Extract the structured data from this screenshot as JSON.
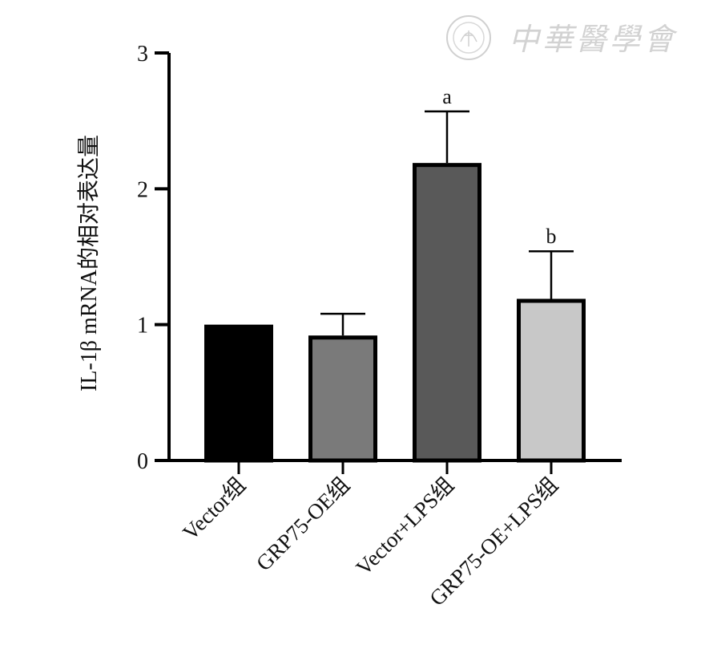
{
  "watermark": {
    "text": "中華醫學會"
  },
  "chart_data": {
    "type": "bar",
    "ylabel": "IL-1β mRNA的相对表达量",
    "xlabel": "",
    "ylim": [
      0,
      3
    ],
    "yticks": [
      0,
      1,
      2,
      3
    ],
    "categories": [
      "Vector组",
      "GRP75-OE组",
      "Vector+LPS组",
      "GRP75-OE+LPS组"
    ],
    "values": [
      1.0,
      0.92,
      2.19,
      1.19
    ],
    "errors": [
      0,
      0.16,
      0.38,
      0.35
    ],
    "significance": [
      "",
      "",
      "a",
      "b"
    ],
    "bar_fill_colors": [
      "#000000",
      "#7a7a7a",
      "#595959",
      "#c8c8c8"
    ],
    "bar_edge_color": "#000000",
    "grid": false,
    "legend": "none"
  }
}
